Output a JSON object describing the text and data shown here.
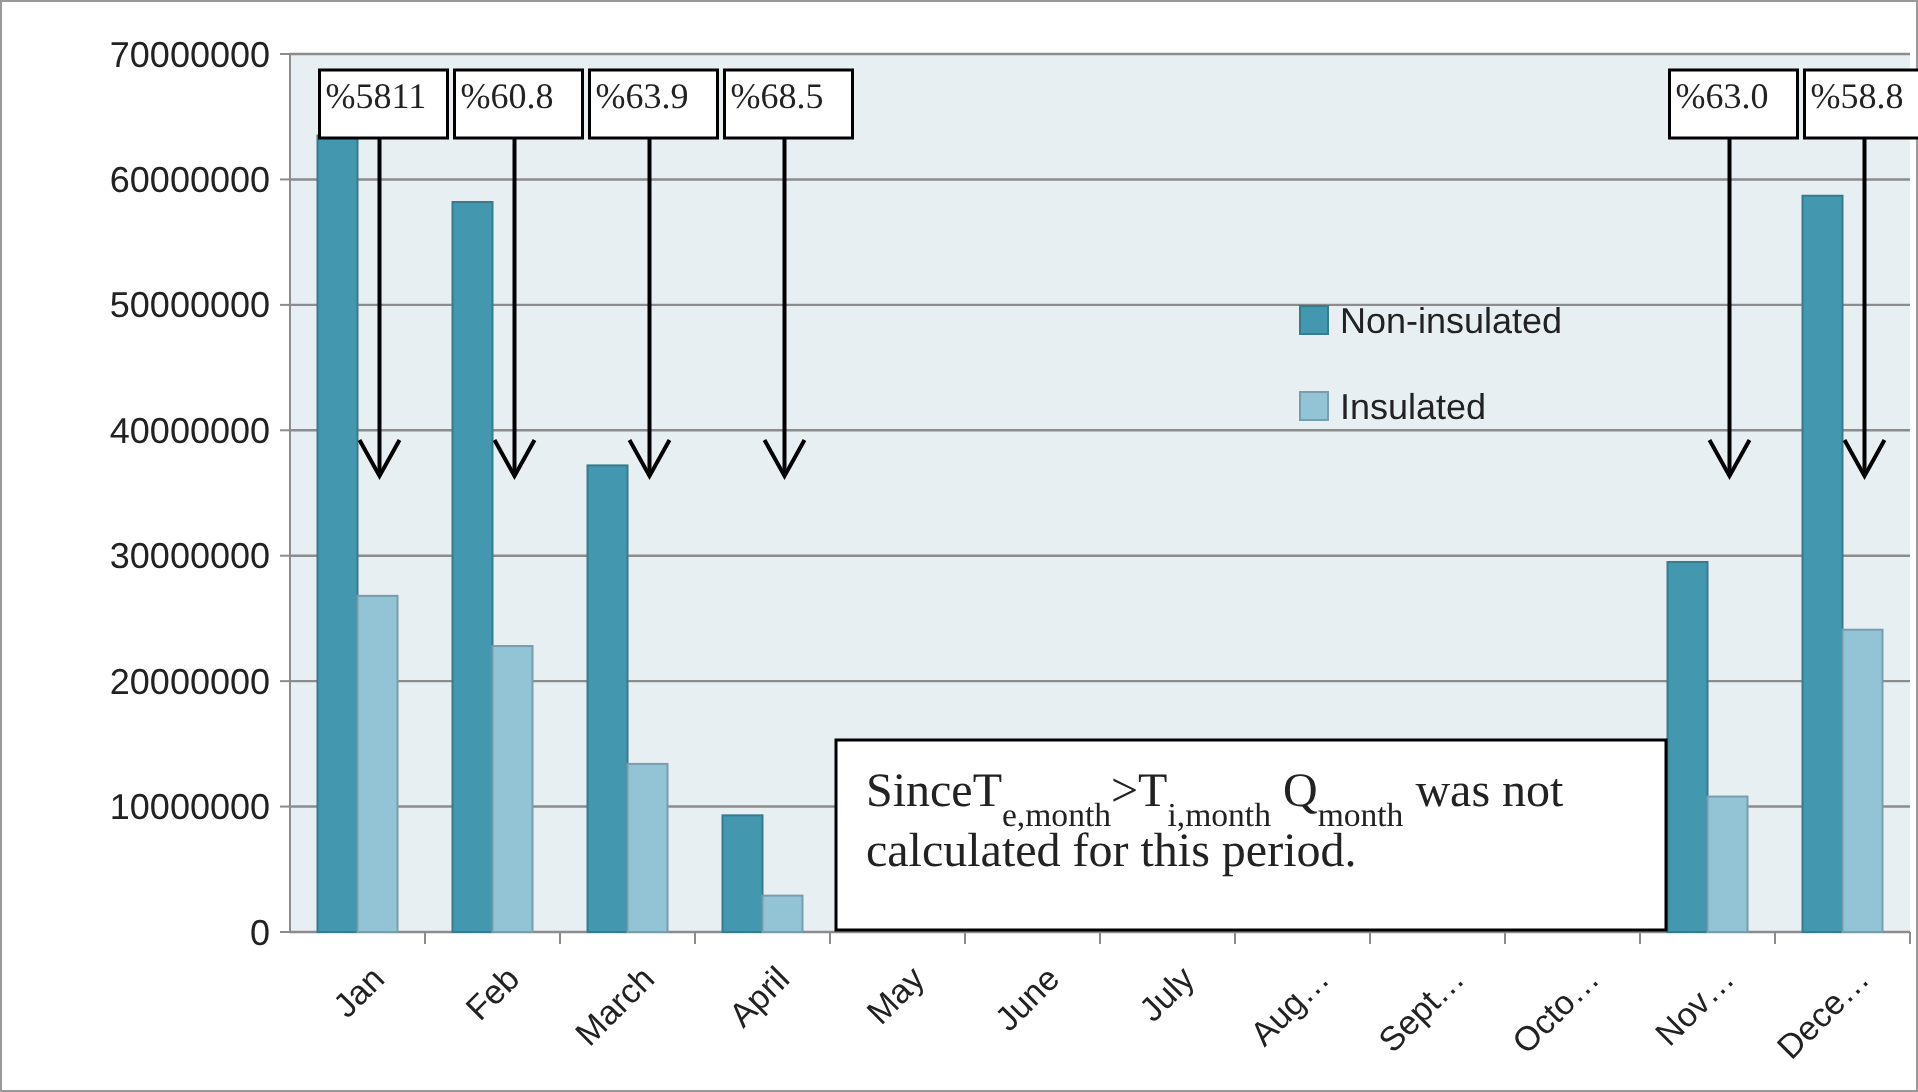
{
  "chart_data": {
    "type": "bar",
    "categories": [
      "Jan",
      "Feb",
      "March",
      "April",
      "May",
      "June",
      "July",
      "Aug…",
      "Sept…",
      "Octo…",
      "Nov…",
      "Dece…"
    ],
    "series": [
      {
        "name": "Non-insulated",
        "color": "#4398b0",
        "values": [
          63500000,
          58200000,
          37200000,
          9300000,
          null,
          null,
          null,
          null,
          null,
          null,
          29500000,
          58700000
        ]
      },
      {
        "name": "Insulated",
        "color": "#93c4d6",
        "values": [
          26800000,
          22800000,
          13400000,
          2900000,
          null,
          null,
          null,
          null,
          null,
          null,
          10800000,
          24100000
        ]
      }
    ],
    "ylim": [
      0,
      70000000
    ],
    "yticks": [
      0,
      10000000,
      20000000,
      30000000,
      40000000,
      50000000,
      60000000,
      70000000
    ],
    "grid": "y",
    "legend": "right",
    "annotations": [
      "%5811",
      "%60.8",
      "%63.9",
      "%68.5",
      "%63.0",
      "%58.8",
      "SinceT$_{e,month}$>T$_{i,month}$  Q$_{month}$ was not calculated for this period."
    ]
  }
}
